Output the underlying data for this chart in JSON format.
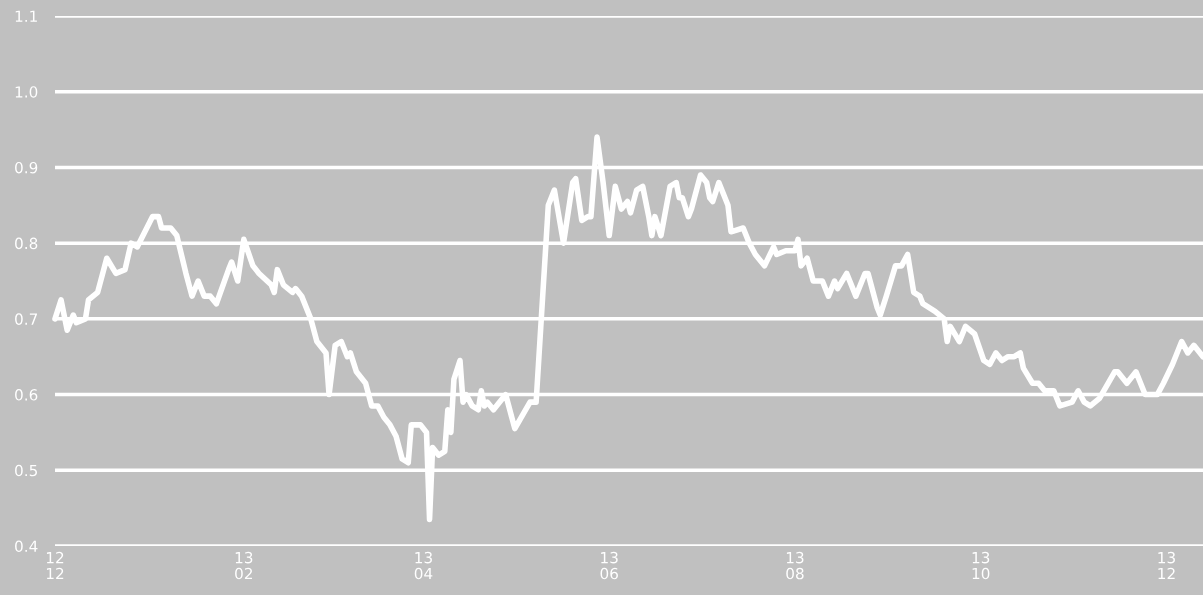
{
  "chart_data": {
    "type": "line",
    "grid": "y",
    "marker": "none",
    "line_style": "solid",
    "xlim": [
      "2012-12-01",
      "2013-12-13"
    ],
    "ylim": [
      0.4,
      1.1
    ],
    "yticks": [
      0.4,
      0.5,
      0.6,
      0.7,
      0.8,
      0.9,
      {
        "value": 1.0,
        "label": "1.0"
      },
      1.1
    ],
    "xticks": [
      {
        "value": "2012-12-01",
        "label": "12\n12"
      },
      {
        "value": "2013-02-01",
        "label": "13\n02"
      },
      {
        "value": "2013-04-01",
        "label": "13\n04"
      },
      {
        "value": "2013-06-01",
        "label": "13\n06"
      },
      {
        "value": "2013-08-01",
        "label": "13\n08"
      },
      {
        "value": "2013-10-01",
        "label": "13\n10"
      },
      {
        "value": "2013-12-01",
        "label": "13\n12"
      }
    ],
    "x": [
      "2012-12-01",
      "2012-12-03",
      "2012-12-05",
      "2012-12-07",
      "2012-12-08",
      "2012-12-11",
      "2012-12-12",
      "2012-12-15",
      "2012-12-18",
      "2012-12-21",
      "2012-12-24",
      "2012-12-26",
      "2012-12-28",
      "2013-01-02",
      "2013-01-04",
      "2013-01-05",
      "2013-01-08",
      "2013-01-10",
      "2013-01-13",
      "2013-01-15",
      "2013-01-17",
      "2013-01-19",
      "2013-01-21",
      "2013-01-23",
      "2013-01-27",
      "2013-01-28",
      "2013-01-30",
      "2013-02-01",
      "2013-02-04",
      "2013-02-06",
      "2013-02-10",
      "2013-02-11",
      "2013-02-12",
      "2013-02-14",
      "2013-02-17",
      "2013-02-18",
      "2013-02-20",
      "2013-02-23",
      "2013-02-25",
      "2013-02-28",
      "2013-03-01",
      "2013-03-03",
      "2013-03-05",
      "2013-03-07",
      "2013-03-08",
      "2013-03-10",
      "2013-03-13",
      "2013-03-15",
      "2013-03-17",
      "2013-03-19",
      "2013-03-21",
      "2013-03-23",
      "2013-03-25",
      "2013-03-27",
      "2013-03-28",
      "2013-03-31",
      "2013-04-02",
      "2013-04-03",
      "2013-04-04",
      "2013-04-06",
      "2013-04-08",
      "2013-04-09",
      "2013-04-10",
      "2013-04-11",
      "2013-04-13",
      "2013-04-14",
      "2013-04-15",
      "2013-04-17",
      "2013-04-19",
      "2013-04-20",
      "2013-04-21",
      "2013-04-22",
      "2013-04-24",
      "2013-04-28",
      "2013-05-01",
      "2013-05-06",
      "2013-05-08",
      "2013-05-12",
      "2013-05-14",
      "2013-05-17",
      "2013-05-20",
      "2013-05-21",
      "2013-05-23",
      "2013-05-25",
      "2013-05-26",
      "2013-05-28",
      "2013-05-30",
      "2013-06-01",
      "2013-06-03",
      "2013-06-05",
      "2013-06-07",
      "2013-06-08",
      "2013-06-10",
      "2013-06-12",
      "2013-06-14",
      "2013-06-15",
      "2013-06-16",
      "2013-06-18",
      "2013-06-21",
      "2013-06-23",
      "2013-06-24",
      "2013-06-25",
      "2013-06-27",
      "2013-06-28",
      "2013-07-01",
      "2013-07-03",
      "2013-07-04",
      "2013-07-05",
      "2013-07-07",
      "2013-07-10",
      "2013-07-11",
      "2013-07-15",
      "2013-07-17",
      "2013-07-19",
      "2013-07-22",
      "2013-07-25",
      "2013-07-26",
      "2013-07-29",
      "2013-08-01",
      "2013-08-02",
      "2013-08-03",
      "2013-08-05",
      "2013-08-07",
      "2013-08-10",
      "2013-08-12",
      "2013-08-14",
      "2013-08-15",
      "2013-08-18",
      "2013-08-21",
      "2013-08-24",
      "2013-08-25",
      "2013-08-28",
      "2013-08-29",
      "2013-08-31",
      "2013-09-03",
      "2013-09-05",
      "2013-09-07",
      "2013-09-09",
      "2013-09-11",
      "2013-09-12",
      "2013-09-16",
      "2013-09-19",
      "2013-09-20",
      "2013-09-21",
      "2013-09-24",
      "2013-09-26",
      "2013-09-29",
      "2013-10-02",
      "2013-10-04",
      "2013-10-06",
      "2013-10-08",
      "2013-10-10",
      "2013-10-12",
      "2013-10-14",
      "2013-10-15",
      "2013-10-18",
      "2013-10-20",
      "2013-10-22",
      "2013-10-25",
      "2013-10-27",
      "2013-10-31",
      "2013-11-02",
      "2013-11-04",
      "2013-11-06",
      "2013-11-09",
      "2013-11-14",
      "2013-11-15",
      "2013-11-18",
      "2013-11-21",
      "2013-11-24",
      "2013-11-28",
      "2013-11-30",
      "2013-12-03",
      "2013-12-06",
      "2013-12-08",
      "2013-12-10",
      "2013-12-13"
    ],
    "series": [
      {
        "color": "#ffffff",
        "values": [
          0.7,
          0.725,
          0.685,
          0.705,
          0.695,
          0.7,
          0.725,
          0.735,
          0.78,
          0.76,
          0.765,
          0.8,
          0.795,
          0.835,
          0.835,
          0.82,
          0.82,
          0.81,
          0.76,
          0.73,
          0.75,
          0.73,
          0.73,
          0.72,
          0.765,
          0.775,
          0.75,
          0.805,
          0.77,
          0.76,
          0.745,
          0.735,
          0.765,
          0.745,
          0.735,
          0.74,
          0.73,
          0.7,
          0.67,
          0.655,
          0.6,
          0.665,
          0.67,
          0.65,
          0.655,
          0.63,
          0.615,
          0.585,
          0.585,
          0.57,
          0.56,
          0.545,
          0.515,
          0.51,
          0.56,
          0.56,
          0.55,
          0.435,
          0.53,
          0.52,
          0.525,
          0.58,
          0.55,
          0.62,
          0.645,
          0.59,
          0.6,
          0.585,
          0.58,
          0.605,
          0.585,
          0.59,
          0.58,
          0.6,
          0.555,
          0.59,
          0.59,
          0.85,
          0.87,
          0.8,
          0.88,
          0.885,
          0.83,
          0.835,
          0.835,
          0.94,
          0.88,
          0.81,
          0.875,
          0.845,
          0.855,
          0.84,
          0.87,
          0.875,
          0.835,
          0.81,
          0.835,
          0.81,
          0.875,
          0.88,
          0.86,
          0.86,
          0.835,
          0.845,
          0.89,
          0.88,
          0.86,
          0.855,
          0.88,
          0.85,
          0.815,
          0.82,
          0.8,
          0.785,
          0.77,
          0.795,
          0.785,
          0.79,
          0.79,
          0.805,
          0.77,
          0.78,
          0.75,
          0.75,
          0.73,
          0.75,
          0.74,
          0.76,
          0.73,
          0.76,
          0.76,
          0.715,
          0.705,
          0.73,
          0.77,
          0.77,
          0.785,
          0.735,
          0.73,
          0.72,
          0.71,
          0.7,
          0.67,
          0.69,
          0.67,
          0.69,
          0.68,
          0.645,
          0.64,
          0.655,
          0.645,
          0.65,
          0.65,
          0.655,
          0.635,
          0.615,
          0.615,
          0.605,
          0.605,
          0.585,
          0.59,
          0.605,
          0.59,
          0.585,
          0.595,
          0.63,
          0.63,
          0.615,
          0.63,
          0.6,
          0.6,
          0.615,
          0.64,
          0.67,
          0.655,
          0.665,
          0.65
        ]
      }
    ]
  }
}
